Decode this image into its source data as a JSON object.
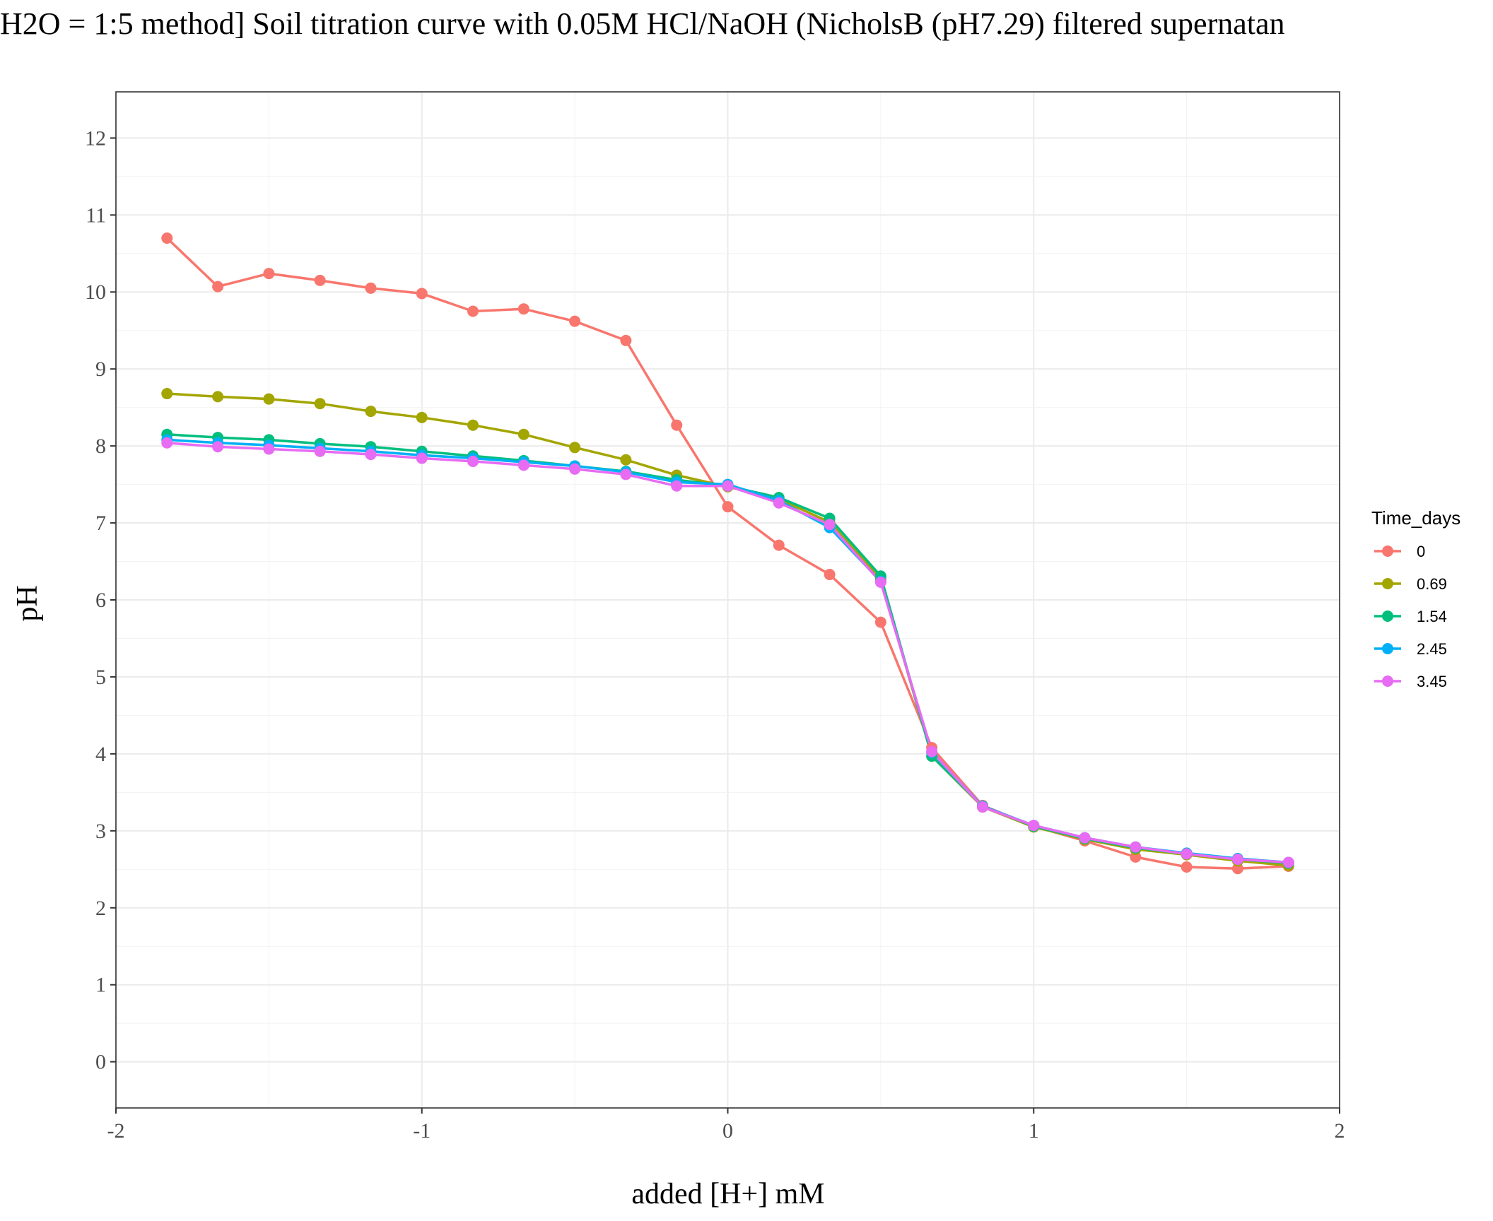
{
  "chart_data": {
    "type": "line",
    "title": "H2O = 1:5 method] Soil titration curve with 0.05M HCl/NaOH (NicholsB (pH7.29) filtered supernatan",
    "xlabel": "added [H+] mM",
    "ylabel": "pH",
    "xlim": [
      -2,
      2
    ],
    "ylim": [
      -0.6,
      12.6
    ],
    "xticks": [
      -2,
      -1,
      0,
      1,
      2
    ],
    "xtick_labels": [
      "-2",
      "-1",
      "0",
      "1",
      "2"
    ],
    "yticks": [
      0,
      1,
      2,
      3,
      4,
      5,
      6,
      7,
      8,
      9,
      10,
      11,
      12
    ],
    "ytick_labels": [
      "0",
      "1",
      "2",
      "3",
      "4",
      "5",
      "6",
      "7",
      "8",
      "9",
      "10",
      "11",
      "12"
    ],
    "grid": true,
    "legend_title": "Time_days",
    "legend_position": "right",
    "x": [
      -1.833,
      -1.667,
      -1.5,
      -1.333,
      -1.167,
      -1.0,
      -0.833,
      -0.667,
      -0.5,
      -0.333,
      -0.167,
      0.0,
      0.167,
      0.333,
      0.5,
      0.667,
      0.833,
      1.0,
      1.167,
      1.333,
      1.5,
      1.667,
      1.833
    ],
    "series": [
      {
        "name": "0",
        "color": "#F8766D",
        "values": [
          10.7,
          10.07,
          10.24,
          10.15,
          10.05,
          9.98,
          9.75,
          9.78,
          9.62,
          9.37,
          8.27,
          7.21,
          6.71,
          6.33,
          5.71,
          4.08,
          3.33,
          3.06,
          2.87,
          2.66,
          2.53,
          2.51,
          2.54
        ]
      },
      {
        "name": "0.69",
        "color": "#A3A500",
        "values": [
          8.68,
          8.64,
          8.61,
          8.55,
          8.45,
          8.37,
          8.27,
          8.15,
          7.98,
          7.82,
          7.62,
          7.47,
          7.31,
          7.01,
          6.27,
          3.97,
          3.31,
          3.05,
          2.89,
          2.76,
          2.69,
          2.61,
          2.55
        ]
      },
      {
        "name": "1.54",
        "color": "#00BF7D",
        "values": [
          8.15,
          8.11,
          8.08,
          8.03,
          7.99,
          7.93,
          7.87,
          7.81,
          7.74,
          7.67,
          7.56,
          7.48,
          7.33,
          7.06,
          6.31,
          3.97,
          3.32,
          3.06,
          2.9,
          2.78,
          2.7,
          2.63,
          2.58
        ]
      },
      {
        "name": "2.45",
        "color": "#00B0F6",
        "values": [
          8.08,
          8.04,
          8.01,
          7.97,
          7.93,
          7.88,
          7.84,
          7.79,
          7.74,
          7.66,
          7.53,
          7.5,
          7.29,
          6.94,
          6.24,
          4.02,
          3.32,
          3.07,
          2.91,
          2.79,
          2.71,
          2.64,
          2.59
        ]
      },
      {
        "name": "3.45",
        "color": "#E76BF3",
        "values": [
          8.04,
          7.99,
          7.96,
          7.93,
          7.89,
          7.84,
          7.8,
          7.75,
          7.7,
          7.63,
          7.48,
          7.48,
          7.26,
          6.98,
          6.23,
          4.03,
          3.31,
          3.07,
          2.91,
          2.79,
          2.7,
          2.63,
          2.59
        ]
      }
    ]
  }
}
